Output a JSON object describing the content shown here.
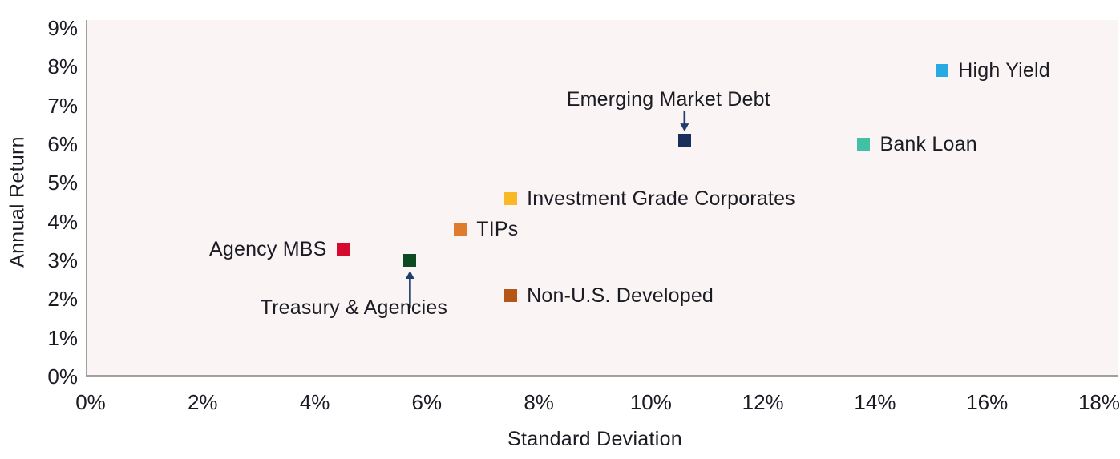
{
  "chart_data": {
    "type": "scatter",
    "title": "",
    "xlabel": "Standard Deviation",
    "ylabel": "Annual Return",
    "xlim": [
      0,
      18
    ],
    "ylim": [
      0,
      9
    ],
    "x_tick_step": 2,
    "y_tick_step": 1,
    "x_ticks": [
      "0%",
      "2%",
      "4%",
      "6%",
      "8%",
      "10%",
      "12%",
      "14%",
      "16%",
      "18%"
    ],
    "y_ticks": [
      "0%",
      "1%",
      "2%",
      "3%",
      "4%",
      "5%",
      "6%",
      "7%",
      "8%",
      "9%"
    ],
    "grid": false,
    "legend_position": "none (direct point labels)",
    "marker_shape": "square",
    "points": [
      {
        "label": "Agency MBS",
        "x": 4.5,
        "y": 3.3,
        "color": "#d60a2e",
        "label_side": "left"
      },
      {
        "label": "Treasury & Agencies",
        "x": 5.7,
        "y": 3.0,
        "color": "#0d4a22",
        "label_side": "below",
        "arrow": true,
        "label_dx": -70
      },
      {
        "label": "TIPs",
        "x": 6.6,
        "y": 3.8,
        "color": "#e07b2d",
        "label_side": "right"
      },
      {
        "label": "Investment Grade Corporates",
        "x": 7.5,
        "y": 4.6,
        "color": "#fbb826",
        "label_side": "right"
      },
      {
        "label": "Non-U.S. Developed",
        "x": 7.5,
        "y": 2.1,
        "color": "#b35617",
        "label_side": "right"
      },
      {
        "label": "Emerging Market Debt",
        "x": 10.6,
        "y": 6.1,
        "color": "#1a2e5e",
        "label_side": "above",
        "arrow": true,
        "label_dx": -20
      },
      {
        "label": "Bank Loan",
        "x": 13.8,
        "y": 6.0,
        "color": "#41c0a5",
        "label_side": "right"
      },
      {
        "label": "High Yield",
        "x": 15.2,
        "y": 7.9,
        "color": "#29a9e1",
        "label_side": "right"
      }
    ],
    "colors": {
      "text": "#1b1b24",
      "plot_bg": "#faf5f4",
      "axis_line": "#a3a0a0",
      "page_bg": "#ffffff",
      "annotation_arrow": "#1f3d6e"
    }
  }
}
